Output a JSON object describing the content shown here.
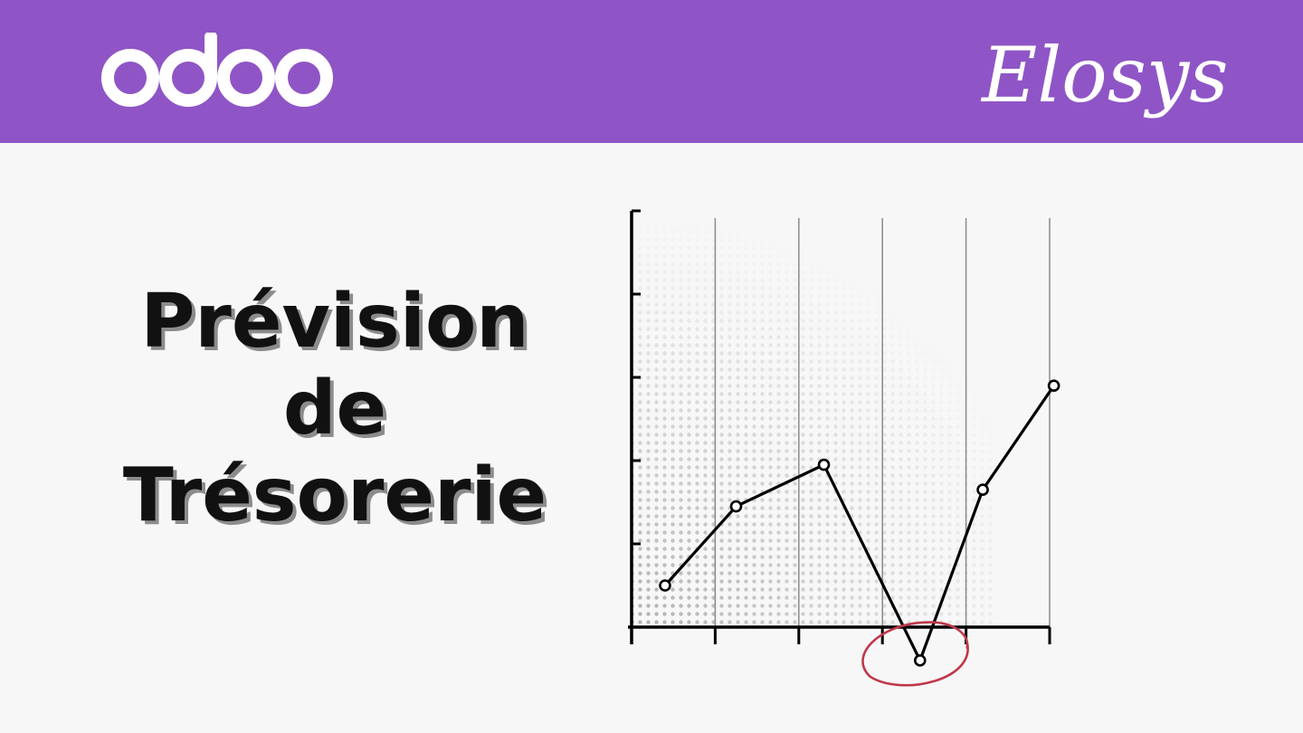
{
  "header": {
    "bg_color": "#8f55c6",
    "left_logo_text": "odoo",
    "right_logo_text": "Elosys"
  },
  "title": {
    "lines": [
      "Prévision",
      "de",
      "Trésorerie"
    ]
  },
  "chart_data": {
    "type": "line",
    "title": "",
    "xlabel": "",
    "ylabel": "",
    "xlim": [
      0,
      5
    ],
    "ylim": [
      -0.4,
      5
    ],
    "grid": true,
    "series": [
      {
        "x": [
          0.4,
          1.25,
          2.3,
          3.45,
          4.2,
          5.05
        ],
        "values": [
          0.5,
          1.45,
          1.95,
          -0.4,
          1.65,
          2.9
        ],
        "color": "#000000"
      }
    ],
    "highlight": {
      "point_index": 3,
      "color": "#c0384a"
    }
  }
}
